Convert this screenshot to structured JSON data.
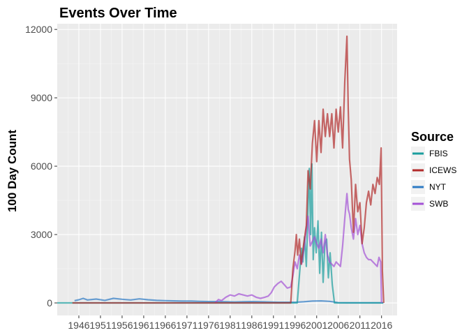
{
  "chart_data": {
    "type": "line",
    "title": "Events Over Time",
    "xlabel": "",
    "ylabel": "100 Day Count",
    "xlim": [
      1941,
      2019.6
    ],
    "ylim": [
      -550,
      12250
    ],
    "x_ticks": [
      1946,
      1951,
      1956,
      1961,
      1966,
      1971,
      1976,
      1981,
      1986,
      1991,
      1996,
      2001,
      2006,
      2011,
      2016
    ],
    "y_ticks": [
      0,
      3000,
      6000,
      9000,
      12000
    ],
    "y_tick_labels": [
      "0",
      "3000",
      "6000",
      "9000",
      "12000"
    ],
    "grid": true,
    "legend": {
      "title": "Source",
      "position": "right"
    },
    "series": [
      {
        "name": "FBIS",
        "color": "#1b9e9e",
        "x": [
          1941,
          1996.5,
          1997,
          1997.5,
          1997.8,
          1998.2,
          1998.6,
          1999,
          1999.3,
          1999.6,
          1999.9,
          2000.2,
          2000.5,
          2000.9,
          2001.3,
          2001.7,
          2002.1,
          2002.5,
          2002.9,
          2003.3,
          2003.7,
          2004.1,
          2004.6,
          2005.1,
          2016.4
        ],
        "y": [
          0,
          0,
          1200,
          2400,
          1800,
          2900,
          1600,
          4200,
          5900,
          3000,
          6100,
          1900,
          3300,
          2200,
          3600,
          1300,
          3100,
          900,
          2600,
          2800,
          1100,
          2200,
          800,
          0,
          0
        ]
      },
      {
        "name": "ICEWS",
        "color": "#b22b2b",
        "x": [
          1944.5,
          1995,
          1995.5,
          1996,
          1996.3,
          1996.6,
          1997,
          1997.4,
          1998,
          1998.6,
          1999,
          1999.5,
          2000,
          2000.5,
          2001,
          2001.5,
          2002,
          2002.5,
          2003,
          2003.5,
          2004,
          2004.5,
          2005,
          2005.5,
          2006,
          2006.5,
          2007,
          2007.5,
          2008,
          2008.3,
          2008.6,
          2009,
          2009.5,
          2010,
          2010.5,
          2011,
          2011.5,
          2012,
          2012.5,
          2013,
          2013.5,
          2014,
          2014.5,
          2015,
          2015.5,
          2015.9,
          2016.2,
          2016.5
        ],
        "y": [
          0,
          0,
          1500,
          2300,
          3000,
          2100,
          2800,
          1700,
          2600,
          3400,
          5800,
          5000,
          7000,
          8000,
          6200,
          8000,
          6600,
          8500,
          7300,
          8300,
          7300,
          8300,
          6800,
          8500,
          7500,
          8600,
          6800,
          9700,
          11700,
          8500,
          6300,
          5400,
          3100,
          5200,
          4000,
          4400,
          2600,
          3300,
          4400,
          4900,
          4300,
          5200,
          4800,
          5500,
          5200,
          6800,
          1400,
          0
        ]
      },
      {
        "name": "NYT",
        "color": "#2d7bc4",
        "x": [
          1945,
          1946,
          1947,
          1948,
          1950,
          1952,
          1954,
          1956,
          1958,
          1960,
          1962,
          1964,
          1966,
          1968,
          1970,
          1972,
          1974,
          1976,
          1978,
          1980,
          1982,
          1984,
          1986,
          1988,
          1990,
          1992,
          1994,
          1996,
          1998,
          2000,
          2002,
          2004,
          2005,
          2006,
          2008,
          2010,
          2012,
          2014,
          2016.4
        ],
        "y": [
          100,
          140,
          200,
          130,
          170,
          110,
          200,
          160,
          130,
          180,
          140,
          110,
          100,
          90,
          80,
          80,
          70,
          60,
          60,
          50,
          40,
          50,
          60,
          50,
          40,
          30,
          30,
          30,
          50,
          80,
          90,
          70,
          40,
          10,
          5,
          5,
          5,
          5,
          5
        ]
      },
      {
        "name": "SWB",
        "color": "#a452d6",
        "x": [
          1977.5,
          1978.3,
          1979,
          1980,
          1981,
          1982,
          1983,
          1984,
          1985,
          1986,
          1987,
          1988,
          1989,
          1989.8,
          1990.5,
          1991.2,
          1992,
          1992.8,
          1993.5,
          1994.2,
          1995,
          1995.5,
          1996,
          1996.5,
          1997,
          1997.5,
          1998,
          1998.5,
          1999,
          1999.5,
          2000,
          2000.5,
          2001,
          2001.5,
          2002,
          2002.5,
          2003,
          2003.5,
          2004,
          2004.5,
          2005,
          2005.5,
          2006,
          2006.5,
          2007,
          2007.5,
          2008,
          2008.3,
          2008.6,
          2009,
          2009.5,
          2010,
          2010.5,
          2011,
          2011.5,
          2012,
          2012.5,
          2013,
          2013.5,
          2014,
          2014.5,
          2015,
          2015.4,
          2015.8,
          2016
        ],
        "y": [
          0,
          150,
          100,
          250,
          350,
          300,
          400,
          350,
          300,
          350,
          250,
          200,
          250,
          300,
          450,
          700,
          850,
          950,
          800,
          650,
          700,
          1200,
          1800,
          1500,
          2100,
          1700,
          2300,
          3100,
          3800,
          2500,
          2700,
          2900,
          2600,
          2400,
          2800,
          2200,
          3000,
          2100,
          1800,
          1700,
          1600,
          1800,
          1700,
          1600,
          2500,
          3700,
          4800,
          4100,
          3900,
          3300,
          2800,
          3700,
          3000,
          3400,
          2600,
          2200,
          2000,
          1900,
          1900,
          1800,
          1700,
          1600,
          2000,
          1800,
          0
        ]
      }
    ]
  }
}
